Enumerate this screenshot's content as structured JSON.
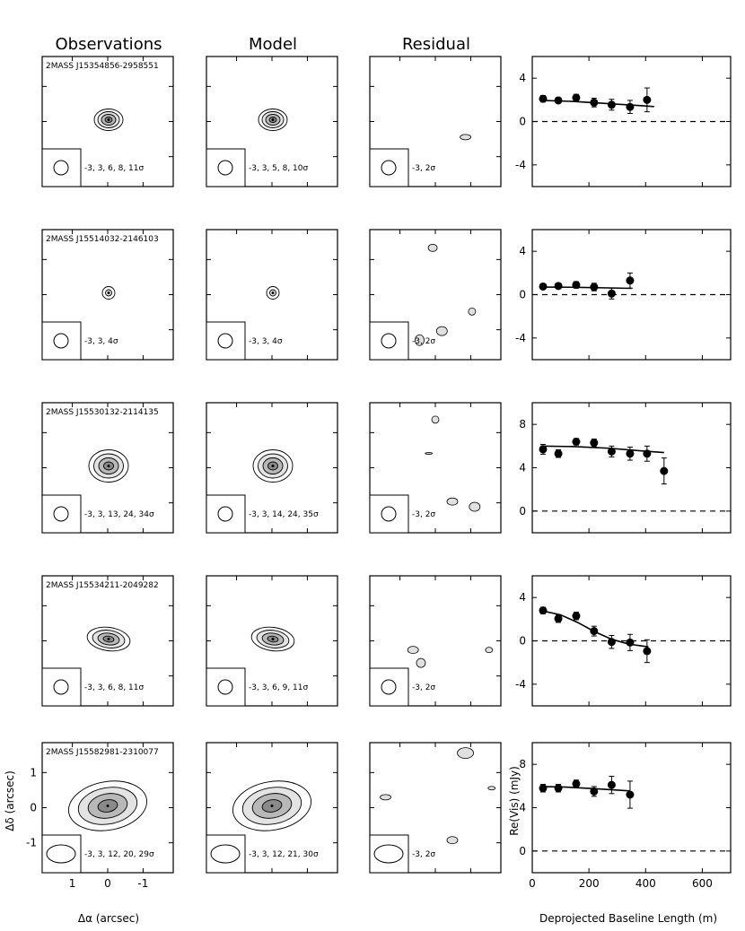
{
  "column_headers": [
    "Observations",
    "Model",
    "Residual"
  ],
  "rows": [
    {
      "source": "2MASS J15354856-2958551",
      "obs_levels": "-3, 3, 6, 8, 11σ",
      "model_levels": "-3, 3, 5, 8, 10σ",
      "resid_levels": "-3, 2σ"
    },
    {
      "source": "2MASS J15514032-2146103",
      "obs_levels": "-3, 3, 4σ",
      "model_levels": "-3, 3, 4σ",
      "resid_levels": "-3, 2σ"
    },
    {
      "source": "2MASS J15530132-2114135",
      "obs_levels": "-3, 3, 13, 24, 34σ",
      "model_levels": "-3, 3, 14, 24, 35σ",
      "resid_levels": "-3, 2σ"
    },
    {
      "source": "2MASS J15534211-2049282",
      "obs_levels": "-3, 3, 6, 8, 11σ",
      "model_levels": "-3, 3, 6, 9, 11σ",
      "resid_levels": "-3, 2σ"
    },
    {
      "source": "2MASS J15582981-2310077",
      "obs_levels": "-3, 3, 12, 20, 29σ",
      "model_levels": "-3, 3, 12, 21, 30σ",
      "resid_levels": "-3, 2σ"
    }
  ],
  "image_axes": {
    "xlabel": "Δα (arcsec)",
    "ylabel": "Δδ (arcsec)",
    "xticks": [
      "1",
      "0",
      "-1"
    ],
    "yticks": [
      "1",
      "0",
      "-1"
    ]
  },
  "vis_axes": {
    "xlabel": "Deprojected Baseline Length (m)",
    "ylabel": "Re(Vis) (mJy)",
    "xticks": [
      "0",
      "200",
      "400",
      "600"
    ]
  },
  "chart_data": [
    {
      "type": "scatter",
      "xlim": [
        0,
        700
      ],
      "ylim": [
        -6,
        6
      ],
      "yticks": [
        -4,
        0,
        4
      ],
      "points": [
        [
          38,
          2.1,
          0.3
        ],
        [
          92,
          1.95,
          0.25
        ],
        [
          155,
          2.2,
          0.3
        ],
        [
          218,
          1.75,
          0.4
        ],
        [
          280,
          1.55,
          0.5
        ],
        [
          345,
          1.35,
          0.6
        ],
        [
          405,
          2.0,
          1.1
        ]
      ],
      "model": [
        [
          30,
          1.95
        ],
        [
          150,
          1.85
        ],
        [
          270,
          1.65
        ],
        [
          390,
          1.45
        ],
        [
          430,
          1.38
        ]
      ]
    },
    {
      "type": "scatter",
      "xlim": [
        0,
        700
      ],
      "ylim": [
        -6,
        6
      ],
      "yticks": [
        -4,
        0,
        4
      ],
      "points": [
        [
          38,
          0.75,
          0.25
        ],
        [
          92,
          0.8,
          0.25
        ],
        [
          155,
          0.9,
          0.3
        ],
        [
          218,
          0.7,
          0.35
        ],
        [
          280,
          0.1,
          0.5
        ],
        [
          345,
          1.3,
          0.7
        ]
      ],
      "model": [
        [
          30,
          0.7
        ],
        [
          150,
          0.68
        ],
        [
          270,
          0.62
        ],
        [
          350,
          0.58
        ]
      ]
    },
    {
      "type": "scatter",
      "xlim": [
        0,
        700
      ],
      "ylim": [
        -2,
        10
      ],
      "yticks": [
        0,
        4,
        8
      ],
      "points": [
        [
          38,
          5.7,
          0.45
        ],
        [
          92,
          5.3,
          0.35
        ],
        [
          155,
          6.4,
          0.3
        ],
        [
          218,
          6.3,
          0.35
        ],
        [
          280,
          5.5,
          0.5
        ],
        [
          345,
          5.3,
          0.6
        ],
        [
          405,
          5.3,
          0.7
        ],
        [
          465,
          3.7,
          1.2
        ]
      ],
      "model": [
        [
          30,
          6.0
        ],
        [
          150,
          5.95
        ],
        [
          270,
          5.8
        ],
        [
          390,
          5.55
        ],
        [
          465,
          5.4
        ]
      ]
    },
    {
      "type": "scatter",
      "xlim": [
        0,
        700
      ],
      "ylim": [
        -6,
        6
      ],
      "yticks": [
        -4,
        0,
        4
      ],
      "points": [
        [
          38,
          2.8,
          0.3
        ],
        [
          92,
          2.05,
          0.35
        ],
        [
          155,
          2.3,
          0.35
        ],
        [
          218,
          0.9,
          0.45
        ],
        [
          280,
          -0.1,
          0.6
        ],
        [
          345,
          -0.15,
          0.75
        ],
        [
          405,
          -0.95,
          1.05
        ]
      ],
      "model": [
        [
          30,
          2.8
        ],
        [
          100,
          2.4
        ],
        [
          160,
          1.7
        ],
        [
          220,
          0.85
        ],
        [
          280,
          0.15
        ],
        [
          340,
          -0.3
        ],
        [
          410,
          -0.55
        ]
      ]
    },
    {
      "type": "scatter",
      "xlim": [
        0,
        700
      ],
      "ylim": [
        -2,
        10
      ],
      "yticks": [
        0,
        4,
        8
      ],
      "points": [
        [
          38,
          5.8,
          0.35
        ],
        [
          92,
          5.8,
          0.35
        ],
        [
          155,
          6.2,
          0.35
        ],
        [
          218,
          5.5,
          0.45
        ],
        [
          280,
          6.1,
          0.8
        ],
        [
          345,
          5.2,
          1.25
        ]
      ],
      "model": [
        [
          30,
          5.95
        ],
        [
          120,
          5.9
        ],
        [
          220,
          5.75
        ],
        [
          345,
          5.55
        ]
      ]
    }
  ]
}
